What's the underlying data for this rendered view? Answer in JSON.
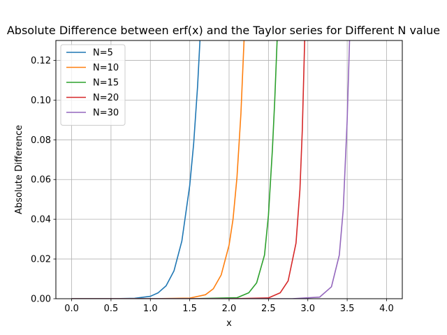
{
  "chart_data": {
    "type": "line",
    "title": "Absolute Difference between erf(x) and the Taylor series for Different N value",
    "xlabel": "x",
    "ylabel": "Absolute Difference",
    "xlim": [
      -0.2,
      4.2
    ],
    "ylim": [
      0,
      0.13
    ],
    "xticks": [
      "0.0",
      "0.5",
      "1.0",
      "1.5",
      "2.0",
      "2.5",
      "3.0",
      "3.5",
      "4.0"
    ],
    "yticks": [
      "0.00",
      "0.02",
      "0.04",
      "0.06",
      "0.08",
      "0.10",
      "0.12"
    ],
    "grid": true,
    "legend_position": "upper-left",
    "series": [
      {
        "name": "N=5",
        "color": "#1f77b4",
        "x": [
          0,
          0.5,
          0.8,
          1.0,
          1.1,
          1.2,
          1.3,
          1.4,
          1.5,
          1.55,
          1.6,
          1.63
        ],
        "y": [
          0,
          0,
          0.0002,
          0.0012,
          0.003,
          0.0065,
          0.014,
          0.029,
          0.057,
          0.078,
          0.107,
          0.13
        ]
      },
      {
        "name": "N=10",
        "color": "#ff7f0e",
        "x": [
          0,
          1.0,
          1.5,
          1.7,
          1.8,
          1.9,
          2.0,
          2.05,
          2.1,
          2.15,
          2.19
        ],
        "y": [
          0,
          0,
          0.0003,
          0.002,
          0.005,
          0.012,
          0.027,
          0.04,
          0.061,
          0.093,
          0.13
        ]
      },
      {
        "name": "N=15",
        "color": "#2ca02c",
        "x": [
          0,
          1.5,
          2.1,
          2.25,
          2.35,
          2.45,
          2.5,
          2.55,
          2.58,
          2.61
        ],
        "y": [
          0,
          0,
          0.0005,
          0.003,
          0.008,
          0.022,
          0.042,
          0.075,
          0.1,
          0.13
        ]
      },
      {
        "name": "N=20",
        "color": "#d62728",
        "x": [
          0,
          2.0,
          2.5,
          2.65,
          2.75,
          2.85,
          2.9,
          2.93,
          2.96
        ],
        "y": [
          0,
          0,
          0.0004,
          0.003,
          0.009,
          0.028,
          0.055,
          0.085,
          0.13
        ]
      },
      {
        "name": "N=30",
        "color": "#9467bd",
        "x": [
          0,
          2.8,
          3.15,
          3.3,
          3.4,
          3.45,
          3.5,
          3.53
        ],
        "y": [
          0,
          0,
          0.0008,
          0.006,
          0.022,
          0.045,
          0.09,
          0.13
        ]
      }
    ]
  }
}
